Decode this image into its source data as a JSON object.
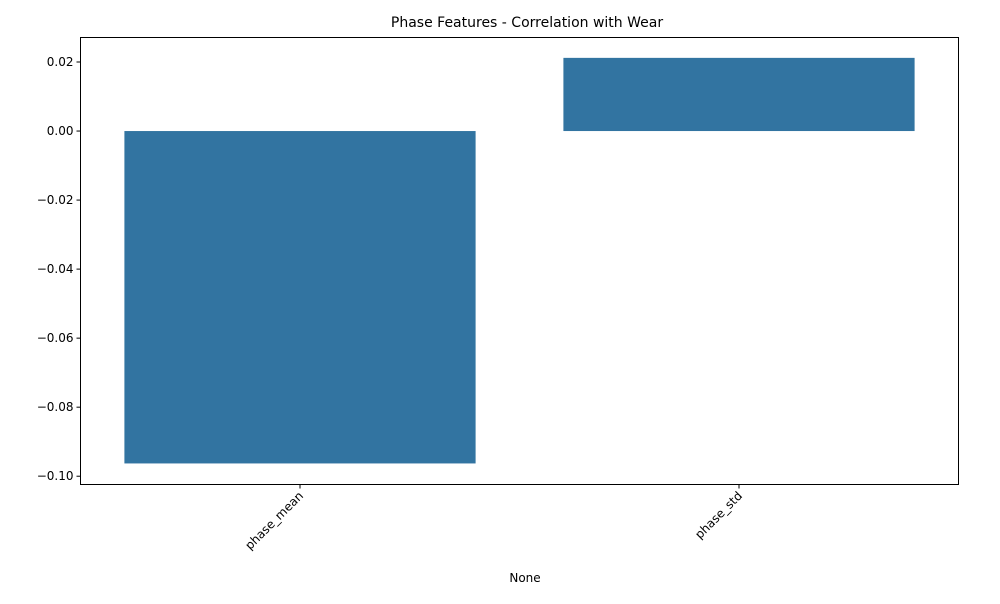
{
  "chart_data": {
    "type": "bar",
    "title": "Phase Features - Correlation with Wear",
    "xlabel": "None",
    "ylabel": "",
    "categories": [
      "phase_mean",
      "phase_std"
    ],
    "values": [
      -0.0963,
      0.0212
    ],
    "ylim": [
      -0.1024,
      0.0271
    ],
    "yticks": [
      {
        "value": 0.02,
        "label": "0.02"
      },
      {
        "value": 0.0,
        "label": "0.00"
      },
      {
        "value": -0.02,
        "label": "−0.02"
      },
      {
        "value": -0.04,
        "label": "−0.04"
      },
      {
        "value": -0.06,
        "label": "−0.06"
      },
      {
        "value": -0.08,
        "label": "−0.08"
      },
      {
        "value": -0.1,
        "label": "−0.10"
      }
    ],
    "bar_color": "#3274a1",
    "grid": false,
    "legend": "none"
  }
}
